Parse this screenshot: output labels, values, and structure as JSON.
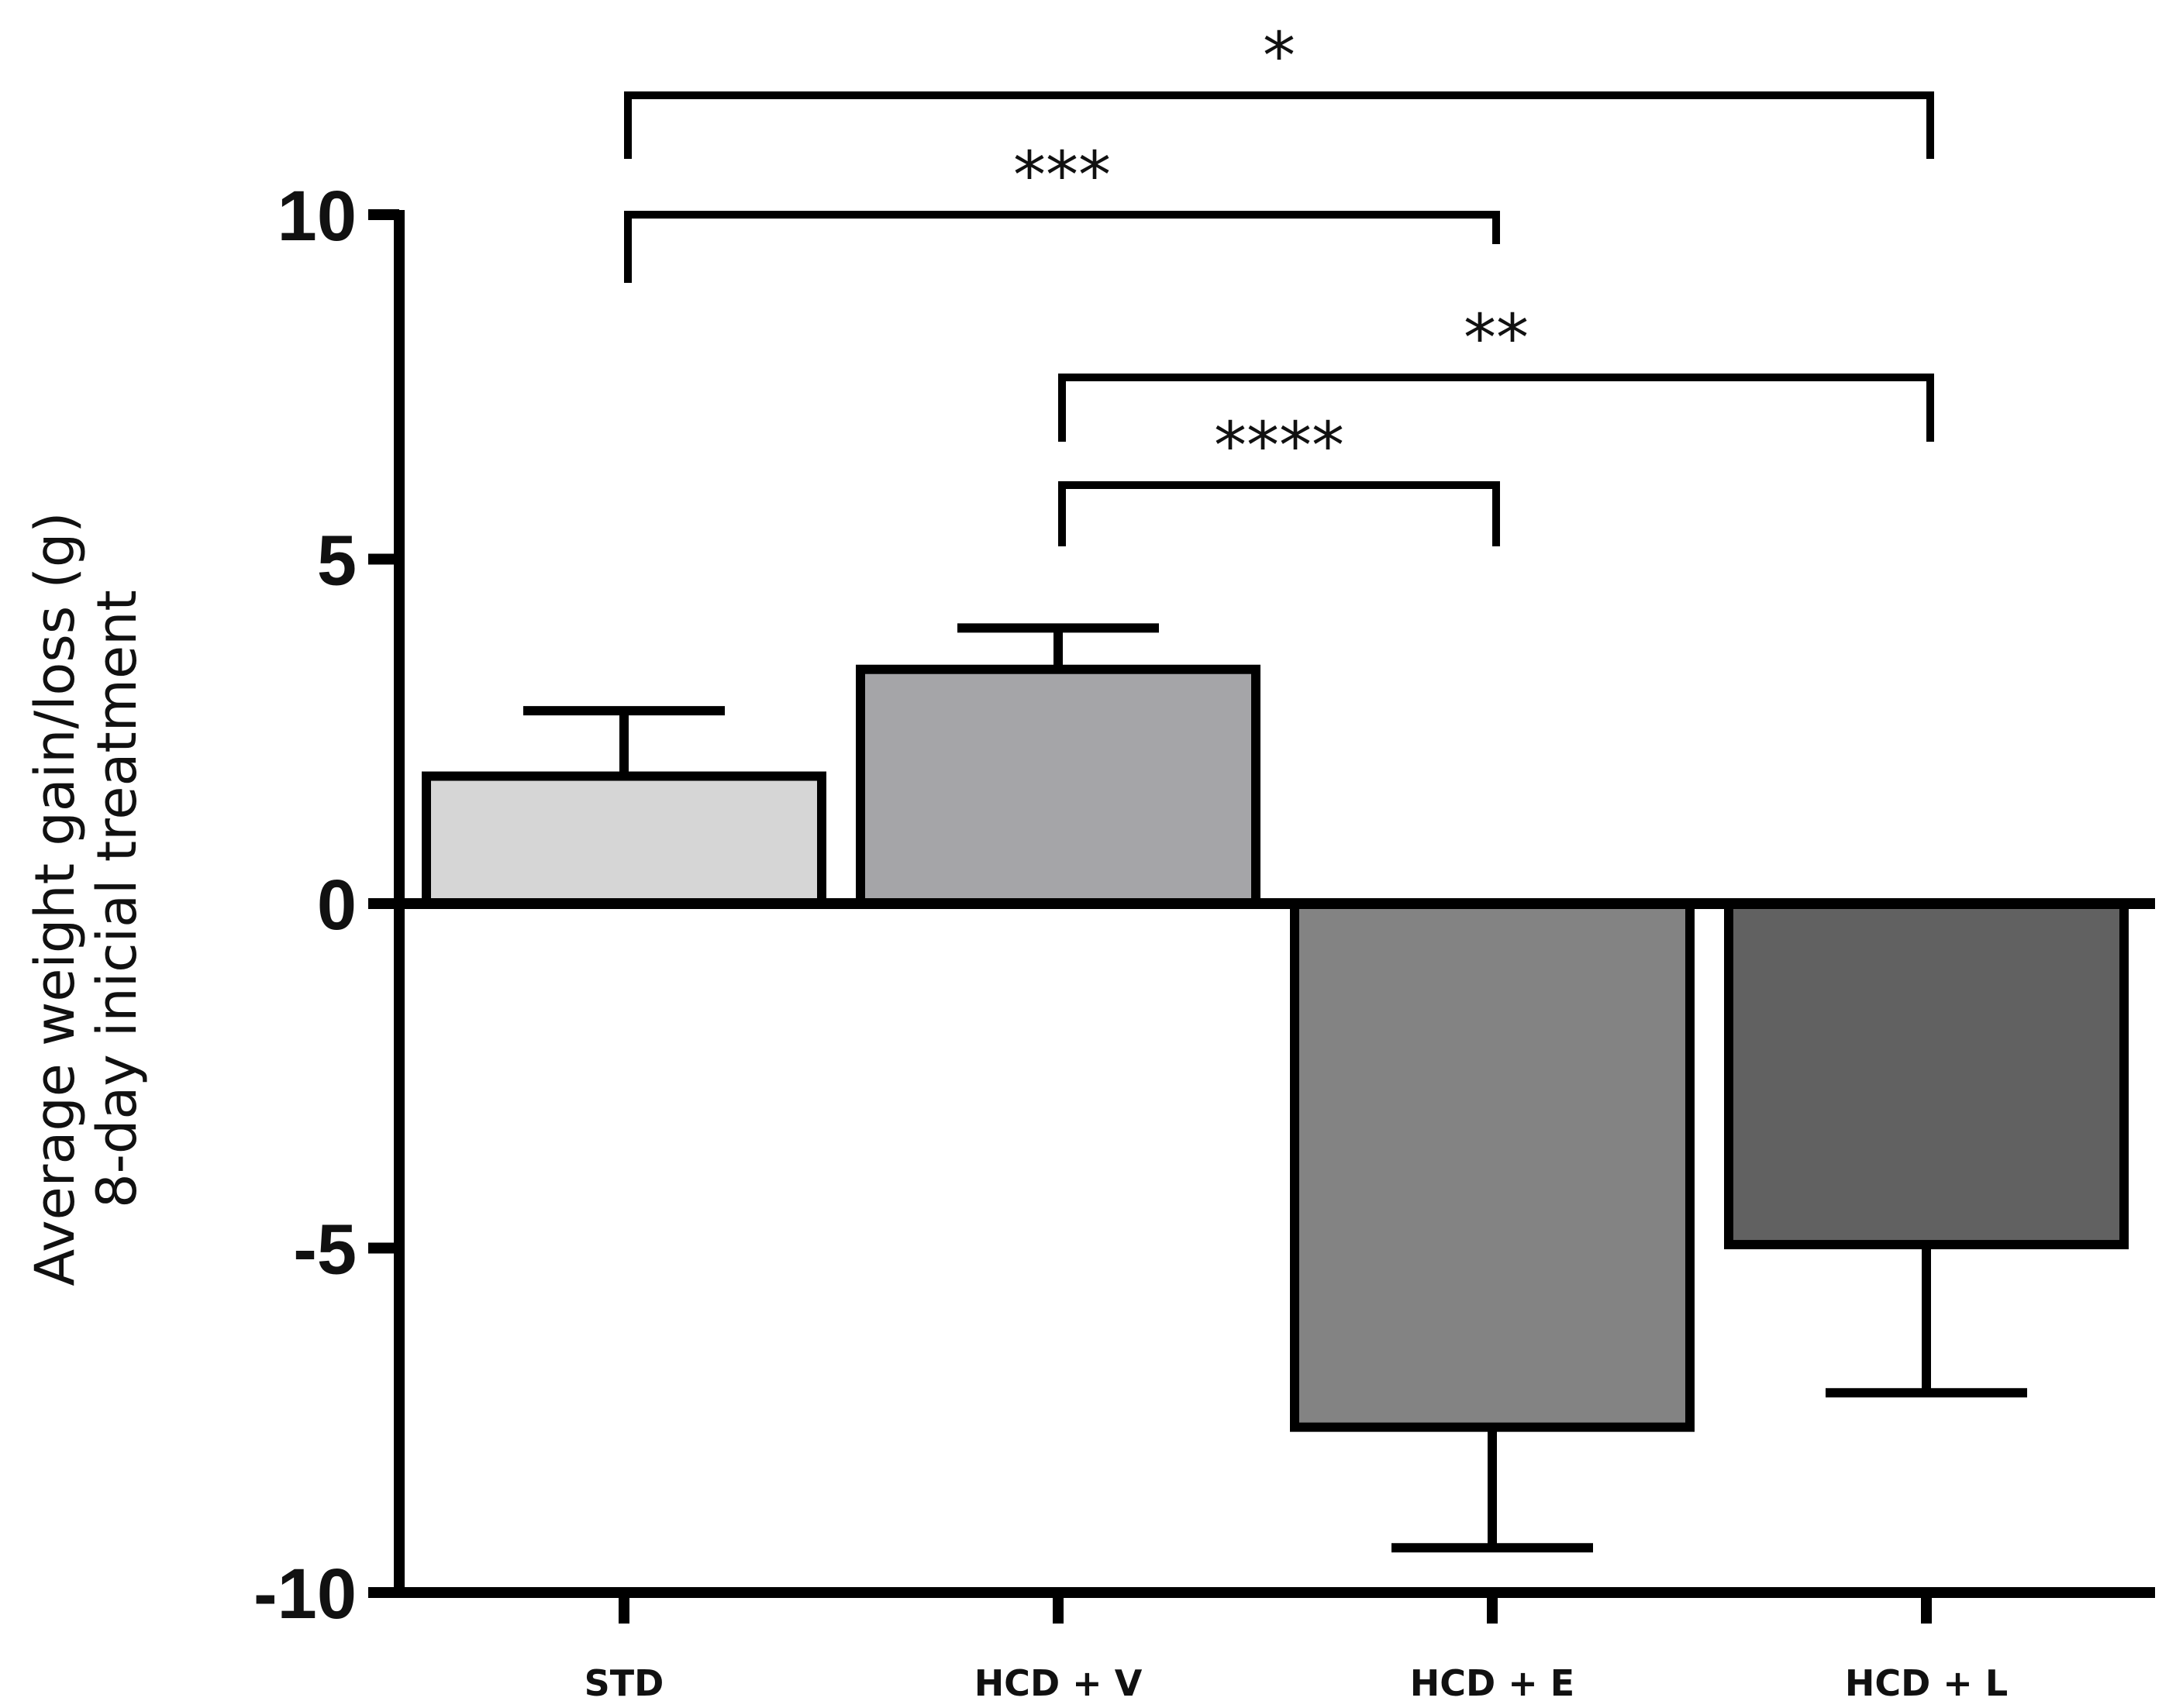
{
  "chart_data": {
    "type": "bar",
    "title": "",
    "ylabel": [
      "Average weight gain/loss (g)",
      "8-day inicial treatment"
    ],
    "xlabel": "",
    "ylim": [
      -10,
      10
    ],
    "yticks": [
      10,
      5,
      0,
      -5,
      -10
    ],
    "ytick_labels": [
      "10",
      "5",
      "0",
      "-5",
      "-10"
    ],
    "categories": [
      "STD",
      "HCD + V",
      "HCD + E",
      "HCD + L"
    ],
    "values": [
      1.85,
      3.4,
      -7.6,
      -4.95
    ],
    "errors": [
      0.95,
      0.6,
      1.75,
      2.15
    ],
    "colors": [
      "#d6d6d6",
      "#a5a5a8",
      "#838383",
      "#616161"
    ],
    "grid": false,
    "significance": [
      {
        "from": "STD",
        "to": "HCD + L",
        "label": "*"
      },
      {
        "from": "STD",
        "to": "HCD + E",
        "label": "***"
      },
      {
        "from": "HCD + V",
        "to": "HCD + L",
        "label": "**"
      },
      {
        "from": "HCD + V",
        "to": "HCD + E",
        "label": "****"
      }
    ]
  }
}
